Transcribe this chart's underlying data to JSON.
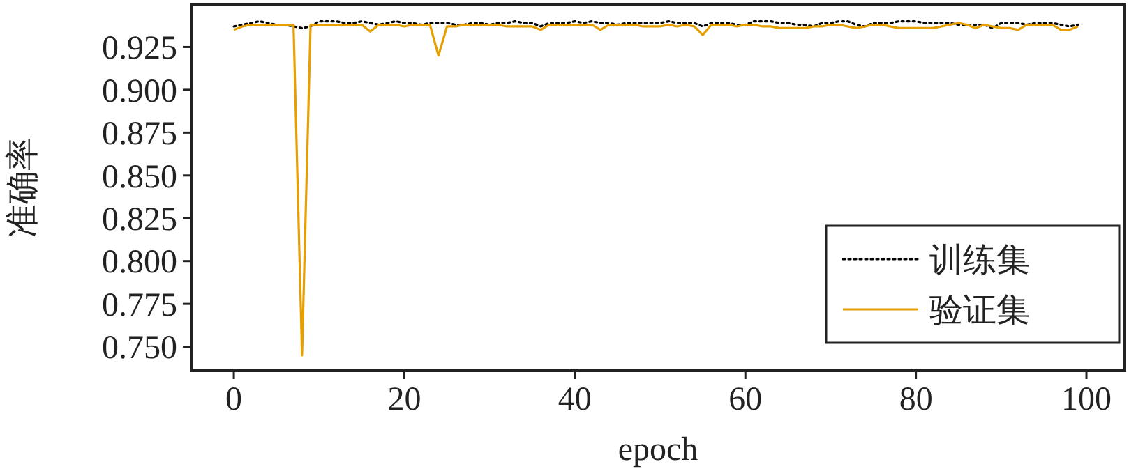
{
  "chart_data": {
    "type": "line",
    "xlabel": "epoch",
    "ylabel": "准确率",
    "x": [
      0,
      1,
      2,
      3,
      4,
      5,
      6,
      7,
      8,
      9,
      10,
      11,
      12,
      13,
      14,
      15,
      16,
      17,
      18,
      19,
      20,
      21,
      22,
      23,
      24,
      25,
      26,
      27,
      28,
      29,
      30,
      31,
      32,
      33,
      34,
      35,
      36,
      37,
      38,
      39,
      40,
      41,
      42,
      43,
      44,
      45,
      46,
      47,
      48,
      49,
      50,
      51,
      52,
      53,
      54,
      55,
      56,
      57,
      58,
      59,
      60,
      61,
      62,
      63,
      64,
      65,
      66,
      67,
      68,
      69,
      70,
      71,
      72,
      73,
      74,
      75,
      76,
      77,
      78,
      79,
      80,
      81,
      82,
      83,
      84,
      85,
      86,
      87,
      88,
      89,
      90,
      91,
      92,
      93,
      94,
      95,
      96,
      97,
      98,
      99
    ],
    "series": [
      {
        "name": "训练集",
        "color": "#000000",
        "line_style": "dotted",
        "values": [
          0.937,
          0.938,
          0.939,
          0.94,
          0.939,
          0.938,
          0.938,
          0.937,
          0.936,
          0.937,
          0.94,
          0.94,
          0.94,
          0.939,
          0.939,
          0.94,
          0.939,
          0.938,
          0.939,
          0.94,
          0.939,
          0.939,
          0.938,
          0.939,
          0.939,
          0.939,
          0.938,
          0.938,
          0.939,
          0.939,
          0.938,
          0.939,
          0.939,
          0.94,
          0.939,
          0.939,
          0.937,
          0.939,
          0.939,
          0.939,
          0.94,
          0.939,
          0.94,
          0.939,
          0.939,
          0.938,
          0.939,
          0.939,
          0.939,
          0.939,
          0.939,
          0.94,
          0.939,
          0.939,
          0.939,
          0.937,
          0.939,
          0.939,
          0.939,
          0.938,
          0.938,
          0.94,
          0.94,
          0.94,
          0.939,
          0.939,
          0.938,
          0.938,
          0.937,
          0.939,
          0.939,
          0.94,
          0.94,
          0.938,
          0.937,
          0.939,
          0.939,
          0.939,
          0.94,
          0.94,
          0.94,
          0.939,
          0.939,
          0.939,
          0.939,
          0.938,
          0.938,
          0.938,
          0.938,
          0.936,
          0.939,
          0.939,
          0.939,
          0.938,
          0.939,
          0.939,
          0.939,
          0.938,
          0.937,
          0.938
        ]
      },
      {
        "name": "验证集",
        "color": "#e69f00",
        "line_style": "solid",
        "values": [
          0.935,
          0.937,
          0.938,
          0.938,
          0.938,
          0.938,
          0.938,
          0.938,
          0.745,
          0.938,
          0.938,
          0.938,
          0.938,
          0.938,
          0.938,
          0.938,
          0.934,
          0.938,
          0.938,
          0.938,
          0.937,
          0.938,
          0.938,
          0.938,
          0.92,
          0.937,
          0.937,
          0.938,
          0.938,
          0.938,
          0.938,
          0.938,
          0.937,
          0.937,
          0.937,
          0.937,
          0.935,
          0.938,
          0.938,
          0.938,
          0.938,
          0.938,
          0.938,
          0.935,
          0.938,
          0.938,
          0.938,
          0.938,
          0.937,
          0.937,
          0.937,
          0.938,
          0.937,
          0.938,
          0.937,
          0.932,
          0.938,
          0.938,
          0.938,
          0.937,
          0.938,
          0.938,
          0.937,
          0.937,
          0.936,
          0.936,
          0.936,
          0.936,
          0.937,
          0.937,
          0.938,
          0.938,
          0.937,
          0.936,
          0.937,
          0.938,
          0.938,
          0.937,
          0.936,
          0.936,
          0.936,
          0.936,
          0.936,
          0.937,
          0.938,
          0.939,
          0.938,
          0.936,
          0.938,
          0.937,
          0.936,
          0.936,
          0.935,
          0.938,
          0.938,
          0.938,
          0.938,
          0.935,
          0.935,
          0.937
        ]
      }
    ],
    "xlim": [
      -5,
      104.5
    ],
    "xticks": [
      0,
      20,
      40,
      60,
      80,
      100
    ],
    "ylim": [
      0.736,
      0.95
    ],
    "yticks": [
      {
        "value": 0.75,
        "label": "0.750"
      },
      {
        "value": 0.775,
        "label": "0.775"
      },
      {
        "value": 0.8,
        "label": "0.800"
      },
      {
        "value": 0.825,
        "label": "0.825"
      },
      {
        "value": 0.85,
        "label": "0.850"
      },
      {
        "value": 0.875,
        "label": "0.875"
      },
      {
        "value": 0.9,
        "label": "0.900"
      },
      {
        "value": 0.925,
        "label": "0.925"
      }
    ],
    "grid": false,
    "legend": "bottom right",
    "marker": "none"
  }
}
